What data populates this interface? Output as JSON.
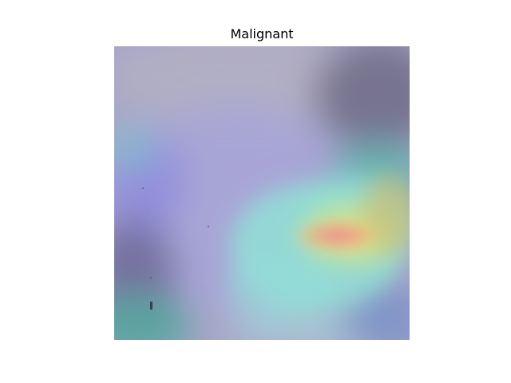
{
  "title": "Malignant",
  "colors": {
    "background": "#ffffff",
    "base_tissue": "#a9a6c2",
    "heatmap_low": "#7a78d8",
    "heatmap_mid": "#8de6d6",
    "heatmap_high_yellow": "#e8e07a",
    "heatmap_peak": "#ef8a9a"
  }
}
